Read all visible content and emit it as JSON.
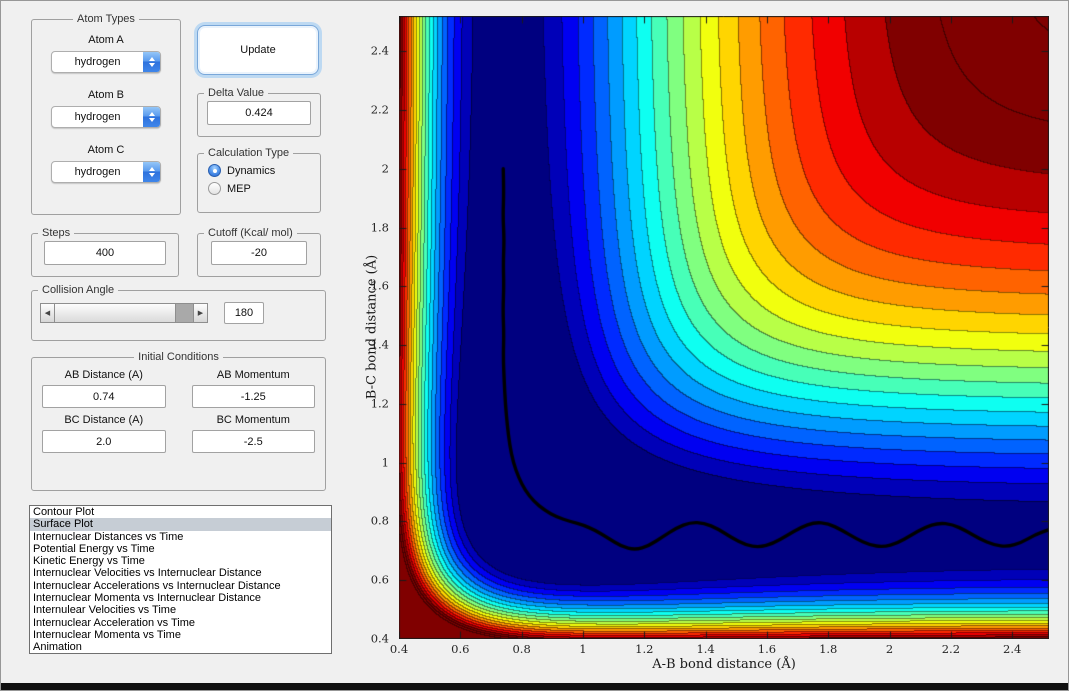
{
  "window": {
    "bg": "#f0f0f0",
    "accent": "#2e72dd"
  },
  "atom_types": {
    "title": "Atom Types",
    "fields": [
      {
        "label": "Atom A",
        "value": "hydrogen"
      },
      {
        "label": "Atom B",
        "value": "hydrogen"
      },
      {
        "label": "Atom C",
        "value": "hydrogen"
      }
    ]
  },
  "update": {
    "label": "Update"
  },
  "delta": {
    "title": "Delta Value",
    "value": "0.424"
  },
  "calc_type": {
    "title": "Calculation Type",
    "options": [
      {
        "label": "Dynamics",
        "selected": true
      },
      {
        "label": "MEP",
        "selected": false
      }
    ]
  },
  "steps": {
    "title": "Steps",
    "value": "400"
  },
  "cutoff": {
    "title": "Cutoff (Kcal/ mol)",
    "value": "-20"
  },
  "collision_angle": {
    "title": "Collision Angle",
    "value": "180"
  },
  "initial_conditions": {
    "title": "Initial Conditions",
    "fields": [
      {
        "label": "AB Distance (A)",
        "value": "0.74"
      },
      {
        "label": "AB Momentum",
        "value": "-1.25"
      },
      {
        "label": "BC Distance (A)",
        "value": "2.0"
      },
      {
        "label": "BC Momentum",
        "value": "-2.5"
      }
    ]
  },
  "plot_list": {
    "selected_index": 1,
    "items": [
      "Contour Plot",
      "Surface Plot",
      "Internuclear Distances vs Time",
      "Potential Energy vs Time",
      "Kinetic Energy vs Time",
      "Internuclear Velocities vs Internuclear Distance",
      "Internuclear Accelerations vs Internuclear Distance",
      "Internuclear Momenta vs Internuclear Distance",
      "Internulear Velocities vs Time",
      "Internuclear Acceleration vs Time",
      "Internuclear Momenta vs Time",
      "Animation"
    ]
  },
  "chart_data": {
    "type": "heatmap",
    "subtype": "filled-contour-potential-energy-surface",
    "xlabel": "A-B bond distance (Å)",
    "ylabel": "B-C bond distance (Å)",
    "xlim": [
      0.4,
      2.52
    ],
    "ylim": [
      0.4,
      2.52
    ],
    "xtick_values": [
      0.4,
      0.6,
      0.8,
      1,
      1.2,
      1.4,
      1.6,
      1.8,
      2,
      2.2,
      2.4
    ],
    "xtick_labels": [
      "0.4",
      "0.6",
      "0.8",
      "1",
      "1.2",
      "1.4",
      "1.6",
      "1.8",
      "2",
      "2.2",
      "2.4"
    ],
    "ytick_values": [
      0.4,
      0.6,
      0.8,
      1,
      1.2,
      1.4,
      1.6,
      1.8,
      2,
      2.2,
      2.4
    ],
    "ytick_labels": [
      "0.4",
      "0.6",
      "0.8",
      "1",
      "1.2",
      "1.4",
      "1.6",
      "1.8",
      "2",
      "2.2",
      "2.4"
    ],
    "colormap": "jet",
    "grid": false,
    "fill_min": -110,
    "fill_max": -20,
    "fill_step": 5,
    "line_max": -10,
    "surface": {
      "model": "LEPS collinear H + H2",
      "D_kcal_mol": 109.4,
      "beta_per_A": 1.942,
      "r0_A": 0.7419,
      "sato_delta": 0.424
    },
    "trajectory": {
      "color": "#000000",
      "width": 3.4,
      "points": [
        [
          0.74,
          2.0
        ],
        [
          0.742,
          1.92
        ],
        [
          0.739,
          1.84
        ],
        [
          0.743,
          1.76
        ],
        [
          0.74,
          1.68
        ],
        [
          0.742,
          1.6
        ],
        [
          0.739,
          1.52
        ],
        [
          0.742,
          1.44
        ],
        [
          0.74,
          1.36
        ],
        [
          0.743,
          1.28
        ],
        [
          0.747,
          1.2
        ],
        [
          0.753,
          1.13
        ],
        [
          0.761,
          1.06
        ],
        [
          0.773,
          1.0
        ],
        [
          0.79,
          0.95
        ],
        [
          0.812,
          0.905
        ],
        [
          0.84,
          0.868
        ],
        [
          0.875,
          0.838
        ],
        [
          0.915,
          0.815
        ],
        [
          0.958,
          0.8
        ],
        [
          1.0,
          0.788
        ],
        [
          1.04,
          0.77
        ],
        [
          1.08,
          0.745
        ],
        [
          1.125,
          0.715
        ],
        [
          1.17,
          0.703
        ],
        [
          1.215,
          0.717
        ],
        [
          1.26,
          0.748
        ],
        [
          1.305,
          0.778
        ],
        [
          1.35,
          0.797
        ],
        [
          1.395,
          0.795
        ],
        [
          1.44,
          0.775
        ],
        [
          1.485,
          0.745
        ],
        [
          1.53,
          0.72
        ],
        [
          1.575,
          0.712
        ],
        [
          1.62,
          0.725
        ],
        [
          1.665,
          0.752
        ],
        [
          1.71,
          0.78
        ],
        [
          1.755,
          0.797
        ],
        [
          1.8,
          0.793
        ],
        [
          1.845,
          0.77
        ],
        [
          1.89,
          0.742
        ],
        [
          1.935,
          0.72
        ],
        [
          1.98,
          0.713
        ],
        [
          2.025,
          0.726
        ],
        [
          2.07,
          0.753
        ],
        [
          2.115,
          0.78
        ],
        [
          2.16,
          0.795
        ],
        [
          2.205,
          0.79
        ],
        [
          2.25,
          0.768
        ],
        [
          2.295,
          0.74
        ],
        [
          2.34,
          0.72
        ],
        [
          2.385,
          0.714
        ],
        [
          2.43,
          0.728
        ],
        [
          2.475,
          0.755
        ],
        [
          2.52,
          0.772
        ]
      ]
    }
  }
}
